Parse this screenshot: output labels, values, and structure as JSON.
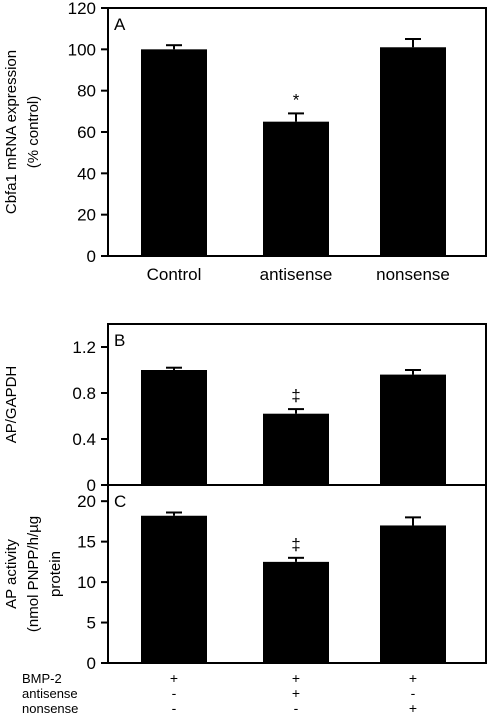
{
  "chart_data": [
    {
      "type": "bar",
      "panel_label": "A",
      "categories": [
        "Control",
        "antisense",
        "nonsense"
      ],
      "values": [
        100,
        65,
        101
      ],
      "errors": [
        2,
        4,
        4
      ],
      "annotations": [
        "",
        "*",
        ""
      ],
      "ylabel_lines": [
        "Cbfa1 mRNA expression",
        "(% control)"
      ],
      "ylim": [
        0,
        120
      ],
      "yticks": [
        "0",
        "20",
        "40",
        "60",
        "80",
        "100",
        "120"
      ]
    },
    {
      "type": "bar",
      "panel_label": "B",
      "values": [
        1.0,
        0.62,
        0.96
      ],
      "errors": [
        0.02,
        0.04,
        0.04
      ],
      "annotations": [
        "",
        "‡",
        ""
      ],
      "ylabel_lines": [
        "AP/GAPDH"
      ],
      "ylim": [
        0,
        1.4
      ],
      "yticks": [
        "0",
        "0.4",
        "0.8",
        "1.2"
      ]
    },
    {
      "type": "bar",
      "panel_label": "C",
      "values": [
        18.2,
        12.5,
        17.0
      ],
      "errors": [
        0.4,
        0.5,
        1.0
      ],
      "annotations": [
        "",
        "‡",
        ""
      ],
      "ylabel_lines": [
        "AP activity",
        "(nmol PNPP/h/µg",
        "protein"
      ],
      "ylim": [
        0,
        22
      ],
      "yticks": [
        "0",
        "5",
        "10",
        "15",
        "20"
      ]
    }
  ],
  "treatment_table": {
    "rows": [
      {
        "label": "BMP-2",
        "marks": [
          "+",
          "+",
          "+"
        ]
      },
      {
        "label": "antisense",
        "marks": [
          "-",
          "+",
          "-"
        ]
      },
      {
        "label": "nonsense",
        "marks": [
          "-",
          "-",
          "+"
        ]
      }
    ]
  }
}
